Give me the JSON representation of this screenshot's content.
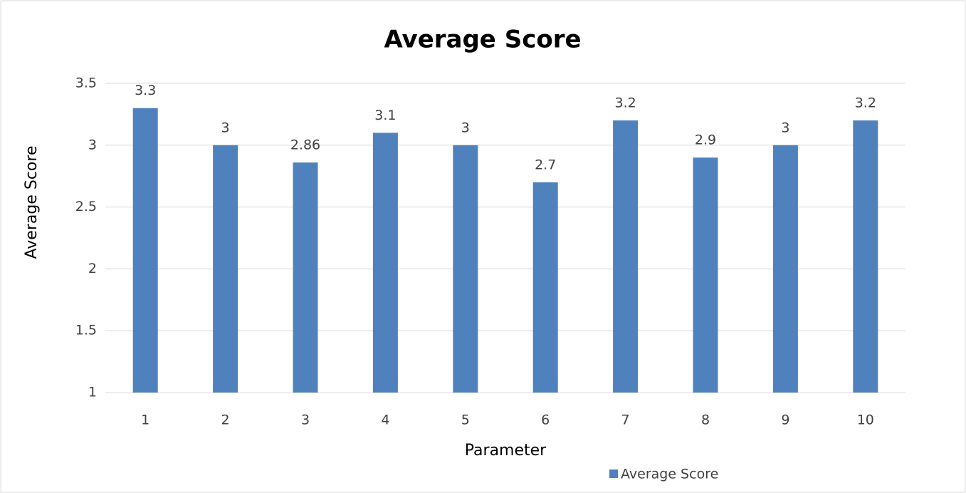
{
  "chart_data": {
    "type": "bar",
    "title": "Average Score",
    "x_label": "Parameter",
    "y_label": "Average Score",
    "categories": [
      "1",
      "2",
      "3",
      "4",
      "5",
      "6",
      "7",
      "8",
      "9",
      "10"
    ],
    "series": [
      {
        "name": "Average Score",
        "color": "#4f81bd",
        "values": [
          3.3,
          3,
          2.86,
          3.1,
          3,
          2.7,
          3.2,
          2.9,
          3,
          3.2
        ]
      }
    ],
    "ylim": [
      1,
      3.5
    ],
    "yticks": [
      1,
      1.5,
      2,
      2.5,
      3,
      3.5
    ],
    "grid": true,
    "legend": "bottom",
    "data_labels": true
  }
}
